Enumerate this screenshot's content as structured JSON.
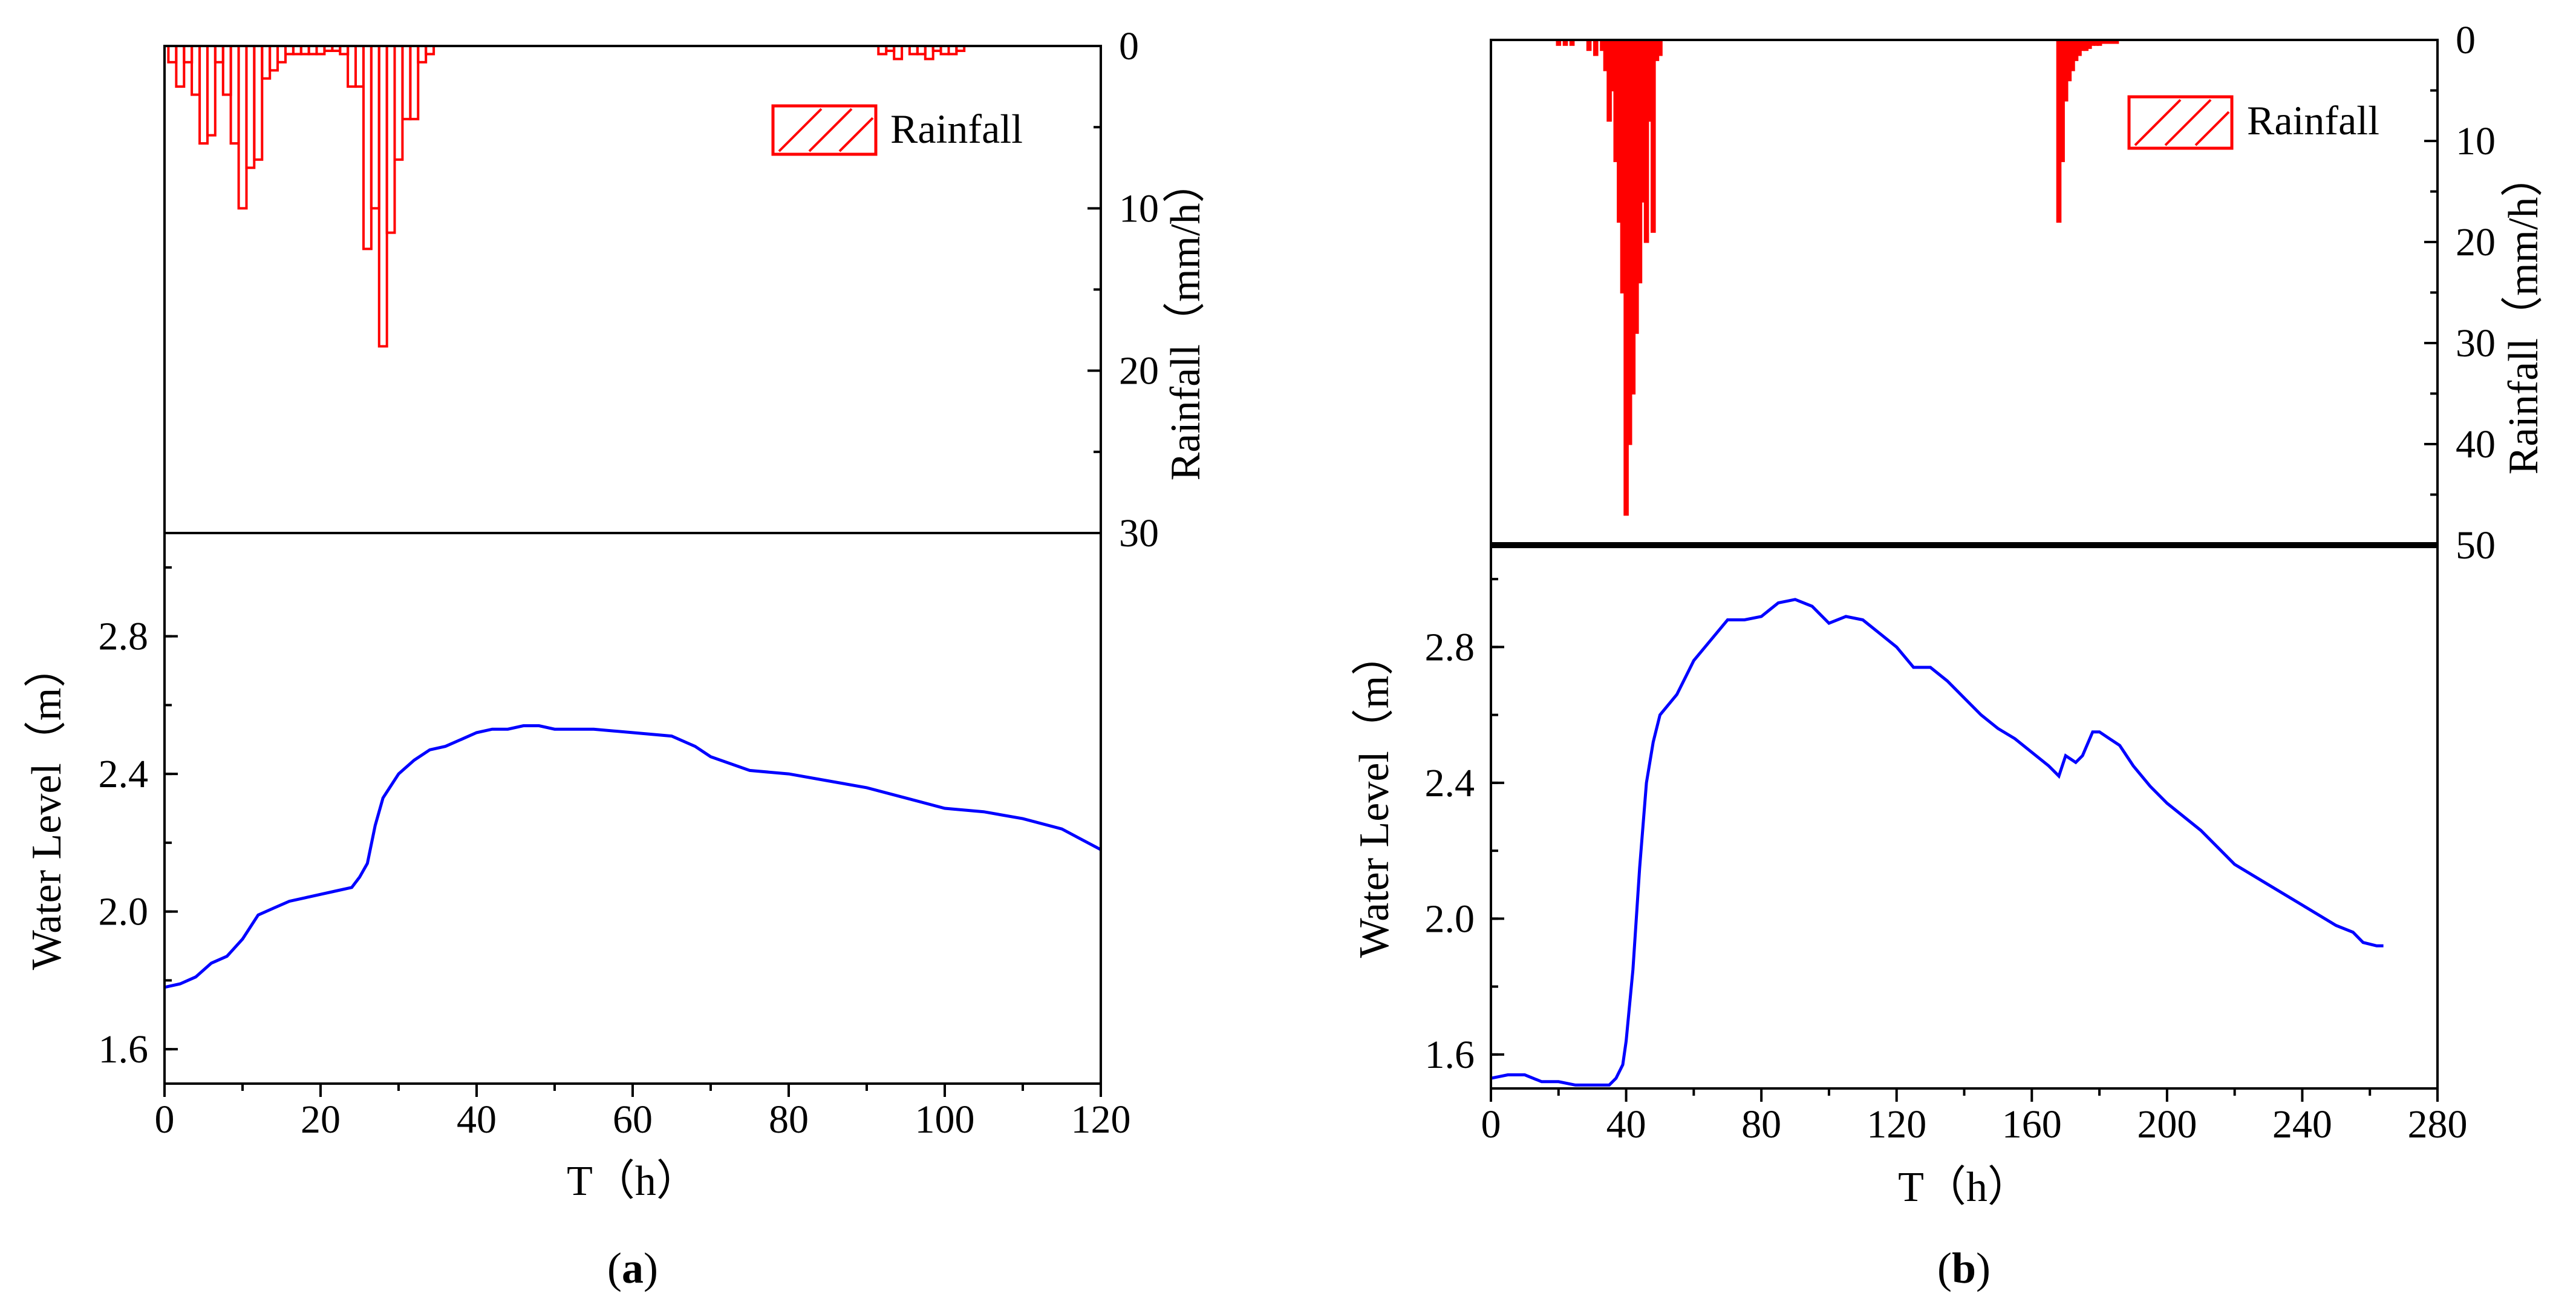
{
  "figure": {
    "panels": [
      {
        "id": "a",
        "label": "a",
        "x_label": "T（h）",
        "rain_axis_label": "Rainfall（mm/h）",
        "level_axis_label": "Water Level（m）",
        "legend_label": "Rainfall",
        "rain_style": "outline"
      },
      {
        "id": "b",
        "label": "b",
        "x_label": "T（h）",
        "rain_axis_label": "Rainfall（mm/h）",
        "level_axis_label": "Water Level（m）",
        "legend_label": "Rainfall",
        "rain_style": "solid"
      }
    ]
  },
  "colors": {
    "rain": "#ff0000",
    "water_level": "#0000ff",
    "axis": "#000000"
  },
  "chart_data": [
    {
      "type": "bar+line",
      "panel": "a",
      "title": "",
      "xlabel": "T（h）",
      "xlim": [
        0,
        120
      ],
      "xticks": [
        0,
        20,
        40,
        60,
        80,
        100,
        120
      ],
      "rain": {
        "name": "Rainfall",
        "ylabel": "Rainfall（mm/h）",
        "ylim": [
          0,
          30
        ],
        "inverted": true,
        "yticks": [
          0,
          10,
          20,
          30
        ],
        "bar_width_h": 1,
        "t": [
          1,
          2,
          3,
          4,
          5,
          6,
          7,
          8,
          9,
          10,
          11,
          12,
          13,
          14,
          15,
          16,
          17,
          18,
          19,
          20,
          21,
          22,
          23,
          24,
          25,
          26,
          27,
          28,
          29,
          30,
          31,
          32,
          33,
          34,
          92,
          93,
          94,
          96,
          97,
          98,
          99,
          100,
          101,
          102
        ],
        "values": [
          1,
          2.5,
          1,
          3,
          6,
          5.5,
          1,
          3,
          6,
          10,
          7.5,
          7,
          2,
          1.5,
          1,
          0.5,
          0.5,
          0.5,
          0.5,
          0.5,
          0.3,
          0.3,
          0.5,
          2.5,
          2.5,
          12.5,
          10,
          18.5,
          11.5,
          7,
          4.5,
          4.5,
          1,
          0.5,
          0.5,
          0.3,
          0.8,
          0.5,
          0.5,
          0.8,
          0.3,
          0.5,
          0.5,
          0.3
        ]
      },
      "water_level": {
        "name": "Water Level",
        "ylabel": "Water Level（m）",
        "ylim": [
          1.5,
          3.1
        ],
        "yticks": [
          1.6,
          2.0,
          2.4,
          2.8
        ],
        "t": [
          0,
          2,
          4,
          6,
          8,
          10,
          12,
          14,
          16,
          18,
          20,
          22,
          24,
          25,
          26,
          27,
          28,
          30,
          32,
          34,
          36,
          38,
          40,
          42,
          44,
          46,
          48,
          50,
          55,
          60,
          65,
          68,
          70,
          75,
          80,
          85,
          90,
          95,
          100,
          105,
          110,
          115,
          120
        ],
        "values": [
          1.78,
          1.79,
          1.81,
          1.85,
          1.87,
          1.92,
          1.99,
          2.01,
          2.03,
          2.04,
          2.05,
          2.06,
          2.07,
          2.1,
          2.14,
          2.25,
          2.33,
          2.4,
          2.44,
          2.47,
          2.48,
          2.5,
          2.52,
          2.53,
          2.53,
          2.54,
          2.54,
          2.53,
          2.53,
          2.52,
          2.51,
          2.48,
          2.45,
          2.41,
          2.4,
          2.38,
          2.36,
          2.33,
          2.3,
          2.29,
          2.27,
          2.24,
          2.18
        ]
      }
    },
    {
      "type": "bar+line",
      "panel": "b",
      "title": "",
      "xlabel": "T（h）",
      "xlim": [
        0,
        280
      ],
      "xticks": [
        0,
        40,
        80,
        120,
        160,
        200,
        240,
        280
      ],
      "rain": {
        "name": "Rainfall",
        "ylabel": "Rainfall（mm/h）",
        "ylim": [
          0,
          50
        ],
        "inverted": true,
        "yticks": [
          0,
          10,
          20,
          30,
          40,
          50
        ],
        "bar_width_h": 1,
        "t": [
          20,
          22,
          24,
          29,
          31,
          33,
          34,
          35,
          36,
          37,
          38,
          39,
          40,
          41,
          42,
          43,
          44,
          45,
          46,
          47,
          48,
          49,
          50,
          168,
          169,
          170,
          171,
          172,
          173,
          174,
          175,
          176,
          177,
          178,
          179,
          180,
          181,
          182,
          183,
          184,
          185
        ],
        "values": [
          0.5,
          0.5,
          0.5,
          1,
          1.5,
          1,
          3,
          8,
          5,
          12,
          18,
          25,
          47,
          40,
          35,
          29,
          24,
          16,
          20,
          8,
          19,
          2,
          1.5,
          18,
          12,
          6,
          4,
          3,
          2,
          1.5,
          1,
          1,
          0.8,
          0.5,
          0.5,
          0.5,
          0.3,
          0.3,
          0.3,
          0.3,
          0.3
        ]
      },
      "water_level": {
        "name": "Water Level",
        "ylabel": "Water Level（m）",
        "ylim": [
          1.5,
          3.1
        ],
        "yticks": [
          1.6,
          2.0,
          2.4,
          2.8
        ],
        "t": [
          0,
          5,
          10,
          15,
          20,
          25,
          30,
          35,
          37,
          39,
          40,
          42,
          44,
          46,
          48,
          50,
          55,
          60,
          65,
          70,
          75,
          80,
          85,
          90,
          95,
          100,
          105,
          110,
          115,
          120,
          125,
          130,
          135,
          140,
          145,
          150,
          155,
          160,
          165,
          168,
          170,
          173,
          175,
          178,
          180,
          183,
          186,
          190,
          195,
          200,
          210,
          220,
          230,
          240,
          250,
          255,
          258,
          262,
          264
        ],
        "values": [
          1.53,
          1.54,
          1.54,
          1.52,
          1.52,
          1.51,
          1.51,
          1.51,
          1.53,
          1.57,
          1.64,
          1.85,
          2.15,
          2.4,
          2.52,
          2.6,
          2.66,
          2.76,
          2.82,
          2.88,
          2.88,
          2.89,
          2.93,
          2.94,
          2.92,
          2.87,
          2.89,
          2.88,
          2.84,
          2.8,
          2.74,
          2.74,
          2.7,
          2.65,
          2.6,
          2.56,
          2.53,
          2.49,
          2.45,
          2.42,
          2.48,
          2.46,
          2.48,
          2.55,
          2.55,
          2.53,
          2.51,
          2.45,
          2.39,
          2.34,
          2.26,
          2.16,
          2.1,
          2.04,
          1.98,
          1.96,
          1.93,
          1.92,
          1.92
        ]
      }
    }
  ]
}
